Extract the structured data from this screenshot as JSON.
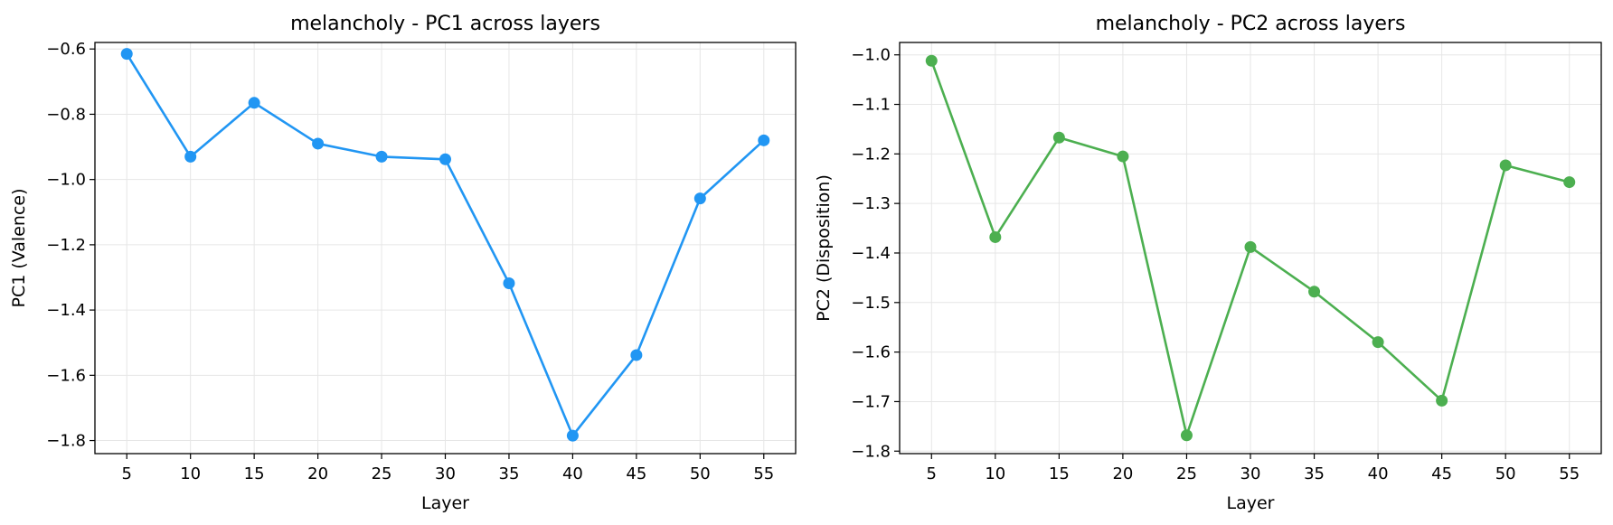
{
  "chart_data": [
    {
      "type": "line",
      "title": "melancholy - PC1 across layers",
      "xlabel": "Layer",
      "ylabel": "PC1 (Valence)",
      "x": [
        5,
        10,
        15,
        20,
        25,
        30,
        35,
        40,
        45,
        50,
        55
      ],
      "x_ticks": [
        "5",
        "10",
        "15",
        "20",
        "25",
        "30",
        "35",
        "40",
        "45",
        "50",
        "55"
      ],
      "y_ticks": [
        "−0.6",
        "−0.8",
        "−1.0",
        "−1.2",
        "−1.4",
        "−1.6",
        "−1.8"
      ],
      "y_tick_values": [
        -0.6,
        -0.8,
        -1.0,
        -1.2,
        -1.4,
        -1.6,
        -1.8
      ],
      "xlim": [
        2.5,
        57.5
      ],
      "ylim": [
        -1.84,
        -0.58
      ],
      "grid": true,
      "series": [
        {
          "color": "#2196F3",
          "values": [
            -0.615,
            -0.93,
            -0.765,
            -0.89,
            -0.93,
            -0.938,
            -1.318,
            -1.785,
            -1.538,
            -1.058,
            -0.88
          ]
        }
      ]
    },
    {
      "type": "line",
      "title": "melancholy - PC2 across layers",
      "xlabel": "Layer",
      "ylabel": "PC2 (Disposition)",
      "x": [
        5,
        10,
        15,
        20,
        25,
        30,
        35,
        40,
        45,
        50,
        55
      ],
      "x_ticks": [
        "5",
        "10",
        "15",
        "20",
        "25",
        "30",
        "35",
        "40",
        "45",
        "50",
        "55"
      ],
      "y_ticks": [
        "−1.0",
        "−1.1",
        "−1.2",
        "−1.3",
        "−1.4",
        "−1.5",
        "−1.6",
        "−1.7",
        "−1.8"
      ],
      "y_tick_values": [
        -1.0,
        -1.1,
        -1.2,
        -1.3,
        -1.4,
        -1.5,
        -1.6,
        -1.7,
        -1.8
      ],
      "xlim": [
        2.5,
        57.5
      ],
      "ylim": [
        -1.805,
        -0.975
      ],
      "grid": true,
      "series": [
        {
          "color": "#4CAF50",
          "values": [
            -1.012,
            -1.368,
            -1.167,
            -1.205,
            -1.768,
            -1.388,
            -1.478,
            -1.58,
            -1.698,
            -1.223,
            -1.257
          ]
        }
      ]
    }
  ]
}
